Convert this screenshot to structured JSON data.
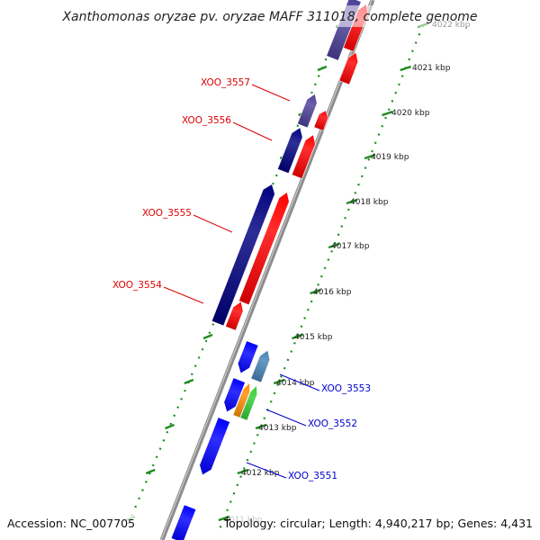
{
  "title": "Xanthomonas oryzae pv. oryzae MAFF 311018, complete genome",
  "footer": {
    "accession": "Accession: NC_007705",
    "summary": "Topology: circular; Length: 4,940,217 bp; Genes: 4,431"
  },
  "colors": {
    "backbone": "#8c8c8c",
    "tick": "#1e8c1e",
    "label_red": "#dd0000",
    "label_blue": "#0000cc",
    "navy": "#000080",
    "slate": "#4b3f99",
    "red": "#ff0000",
    "blue": "#0000ff",
    "steel": "#4682b4",
    "orange": "#ff8c00",
    "green": "#32cd32"
  },
  "ticks": [
    "4022 kbp",
    "4021 kbp",
    "4020 kbp",
    "4019 kbp",
    "4018 kbp",
    "4017 kbp",
    "4016 kbp",
    "4015 kbp",
    "4014 kbp",
    "4013 kbp",
    "4012 kbp",
    "4011 kbp"
  ],
  "gene_labels": [
    {
      "name": "XOO_3557",
      "color": "label_red"
    },
    {
      "name": "XOO_3556",
      "color": "label_red"
    },
    {
      "name": "XOO_3555",
      "color": "label_red"
    },
    {
      "name": "XOO_3554",
      "color": "label_red"
    },
    {
      "name": "XOO_3553",
      "color": "label_blue"
    },
    {
      "name": "XOO_3552",
      "color": "label_blue"
    },
    {
      "name": "XOO_3551",
      "color": "label_blue"
    }
  ]
}
